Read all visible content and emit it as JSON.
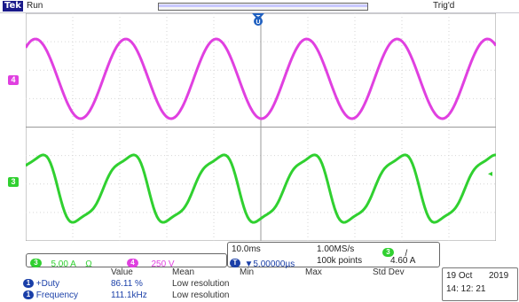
{
  "status": {
    "logo": "Tek",
    "run_state": "Run",
    "trigger_state": "Trig'd"
  },
  "channels": {
    "ch4": {
      "label": "4",
      "color": "#e040e0",
      "scale": "250 V"
    },
    "ch3": {
      "label": "3",
      "color": "#30d030",
      "scale": "5.00 A",
      "termination": "Ω"
    }
  },
  "timebase": {
    "time_per_div": "10.0ms",
    "sample_rate": "1.00MS/s",
    "trigger_position": "▼5.00000µs",
    "record_length": "100k points",
    "trigger_source": "3",
    "trigger_slope": "/",
    "trigger_level": "4.60 A"
  },
  "measurements": {
    "headers": [
      "Value",
      "Mean",
      "Min",
      "Max",
      "Std Dev"
    ],
    "rows": [
      {
        "badge": "1",
        "name": "+Duty",
        "value": "86.11 %",
        "mean": "Low resolution"
      },
      {
        "badge": "1",
        "name": "Frequency",
        "value": "111.1kHz",
        "mean": "Low resolution"
      }
    ]
  },
  "datetime": {
    "date": "19 Oct",
    "year": "2019",
    "time": "14: 12: 21"
  },
  "colors": {
    "ch4": "#e040e0",
    "ch3": "#30d030",
    "trigger_marker": "#2060c0",
    "measure_text": "#1a3fa8"
  },
  "waveforms": {
    "ch4": {
      "cycles_visible": 5.2,
      "shape": "sine"
    },
    "ch3": {
      "cycles_visible": 5.2,
      "shape": "distorted-sine"
    }
  }
}
